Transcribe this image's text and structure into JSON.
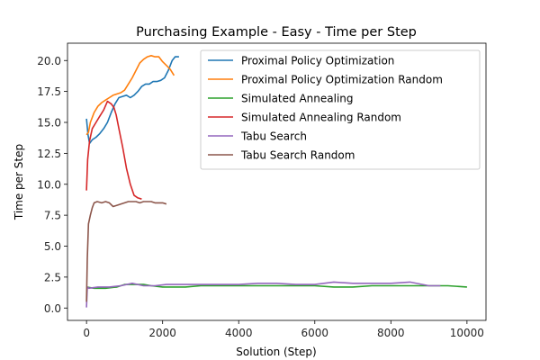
{
  "chart_data": {
    "type": "line",
    "title": "Purchasing Example - Easy - Time per Step",
    "xlabel": "Solution (Step)",
    "ylabel": "Time per Step",
    "xlim": [
      -500,
      10500
    ],
    "ylim": [
      -1.0,
      21.4
    ],
    "x_ticks": [
      0,
      2000,
      4000,
      6000,
      8000,
      10000
    ],
    "x_tick_labels": [
      "0",
      "2000",
      "4000",
      "6000",
      "8000",
      "10000"
    ],
    "y_ticks": [
      0,
      2.5,
      5,
      7.5,
      10,
      12.5,
      15,
      17.5,
      20
    ],
    "y_tick_labels": [
      "0.0",
      "2.5",
      "5.0",
      "7.5",
      "10.0",
      "12.5",
      "15.0",
      "17.5",
      "20.0"
    ],
    "grid": false,
    "legend_position": "top-right",
    "series": [
      {
        "name": "Proximal Policy Optimization",
        "color": "#1f77b4",
        "points": [
          [
            0,
            15.3
          ],
          [
            40,
            14.0
          ],
          [
            80,
            13.3
          ],
          [
            150,
            13.6
          ],
          [
            250,
            13.8
          ],
          [
            350,
            14.1
          ],
          [
            450,
            14.5
          ],
          [
            550,
            15.0
          ],
          [
            650,
            15.8
          ],
          [
            750,
            16.5
          ],
          [
            850,
            17.0
          ],
          [
            950,
            17.1
          ],
          [
            1050,
            17.2
          ],
          [
            1150,
            17.0
          ],
          [
            1250,
            17.2
          ],
          [
            1350,
            17.5
          ],
          [
            1450,
            17.9
          ],
          [
            1550,
            18.1
          ],
          [
            1650,
            18.1
          ],
          [
            1750,
            18.3
          ],
          [
            1850,
            18.3
          ],
          [
            1950,
            18.4
          ],
          [
            2050,
            18.6
          ],
          [
            2150,
            19.2
          ],
          [
            2250,
            20.0
          ],
          [
            2330,
            20.3
          ],
          [
            2430,
            20.3
          ]
        ]
      },
      {
        "name": "Proximal Policy Optimization Random",
        "color": "#ff7f0e",
        "points": [
          [
            0,
            14.0
          ],
          [
            50,
            14.2
          ],
          [
            100,
            15.0
          ],
          [
            200,
            15.8
          ],
          [
            300,
            16.3
          ],
          [
            400,
            16.6
          ],
          [
            500,
            16.8
          ],
          [
            600,
            17.0
          ],
          [
            700,
            17.2
          ],
          [
            800,
            17.3
          ],
          [
            900,
            17.4
          ],
          [
            1000,
            17.6
          ],
          [
            1100,
            18.1
          ],
          [
            1200,
            18.6
          ],
          [
            1300,
            19.2
          ],
          [
            1400,
            19.8
          ],
          [
            1500,
            20.1
          ],
          [
            1600,
            20.3
          ],
          [
            1700,
            20.4
          ],
          [
            1800,
            20.3
          ],
          [
            1900,
            20.3
          ],
          [
            2000,
            19.9
          ],
          [
            2100,
            19.6
          ],
          [
            2200,
            19.3
          ],
          [
            2300,
            18.8
          ]
        ]
      },
      {
        "name": "Simulated Annealing",
        "color": "#2ca02c",
        "points": [
          [
            0,
            1.7
          ],
          [
            200,
            1.6
          ],
          [
            500,
            1.6
          ],
          [
            800,
            1.7
          ],
          [
            1000,
            1.9
          ],
          [
            1300,
            1.9
          ],
          [
            1500,
            1.9
          ],
          [
            1700,
            1.8
          ],
          [
            2000,
            1.7
          ],
          [
            2300,
            1.7
          ],
          [
            2600,
            1.7
          ],
          [
            3000,
            1.8
          ],
          [
            3500,
            1.8
          ],
          [
            4000,
            1.8
          ],
          [
            4500,
            1.8
          ],
          [
            5000,
            1.8
          ],
          [
            5500,
            1.8
          ],
          [
            6000,
            1.8
          ],
          [
            6500,
            1.7
          ],
          [
            7000,
            1.7
          ],
          [
            7500,
            1.8
          ],
          [
            8000,
            1.8
          ],
          [
            8500,
            1.8
          ],
          [
            9000,
            1.8
          ],
          [
            9500,
            1.8
          ],
          [
            10000,
            1.7
          ]
        ]
      },
      {
        "name": "Simulated Annealing Random",
        "color": "#d62728",
        "points": [
          [
            0,
            9.5
          ],
          [
            30,
            12.0
          ],
          [
            80,
            13.5
          ],
          [
            150,
            14.5
          ],
          [
            250,
            15.0
          ],
          [
            350,
            15.5
          ],
          [
            450,
            16.0
          ],
          [
            550,
            16.7
          ],
          [
            650,
            16.5
          ],
          [
            720,
            16.2
          ],
          [
            780,
            15.6
          ],
          [
            850,
            14.5
          ],
          [
            950,
            13.0
          ],
          [
            1050,
            11.3
          ],
          [
            1150,
            10.0
          ],
          [
            1250,
            9.1
          ],
          [
            1350,
            8.9
          ],
          [
            1450,
            8.8
          ]
        ]
      },
      {
        "name": "Tabu Search",
        "color": "#9467bd",
        "points": [
          [
            0,
            0.05
          ],
          [
            20,
            1.7
          ],
          [
            60,
            1.6
          ],
          [
            300,
            1.7
          ],
          [
            600,
            1.7
          ],
          [
            900,
            1.8
          ],
          [
            1200,
            2.0
          ],
          [
            1500,
            1.8
          ],
          [
            1800,
            1.8
          ],
          [
            2100,
            1.9
          ],
          [
            2500,
            1.9
          ],
          [
            3000,
            1.9
          ],
          [
            3500,
            1.9
          ],
          [
            4000,
            1.9
          ],
          [
            4500,
            2.0
          ],
          [
            5000,
            2.0
          ],
          [
            5500,
            1.9
          ],
          [
            6000,
            1.9
          ],
          [
            6500,
            2.1
          ],
          [
            7000,
            2.0
          ],
          [
            7500,
            2.0
          ],
          [
            8000,
            2.0
          ],
          [
            8500,
            2.1
          ],
          [
            9000,
            1.8
          ],
          [
            9300,
            1.8
          ]
        ]
      },
      {
        "name": "Tabu Search Random",
        "color": "#8c564b",
        "points": [
          [
            0,
            0.5
          ],
          [
            20,
            4.0
          ],
          [
            50,
            6.8
          ],
          [
            100,
            7.5
          ],
          [
            150,
            8.1
          ],
          [
            200,
            8.5
          ],
          [
            280,
            8.6
          ],
          [
            400,
            8.5
          ],
          [
            500,
            8.6
          ],
          [
            600,
            8.5
          ],
          [
            700,
            8.2
          ],
          [
            800,
            8.3
          ],
          [
            900,
            8.4
          ],
          [
            1000,
            8.5
          ],
          [
            1100,
            8.6
          ],
          [
            1200,
            8.6
          ],
          [
            1300,
            8.6
          ],
          [
            1400,
            8.5
          ],
          [
            1500,
            8.6
          ],
          [
            1600,
            8.6
          ],
          [
            1700,
            8.6
          ],
          [
            1800,
            8.5
          ],
          [
            1900,
            8.5
          ],
          [
            2000,
            8.5
          ],
          [
            2100,
            8.4
          ]
        ]
      }
    ]
  }
}
